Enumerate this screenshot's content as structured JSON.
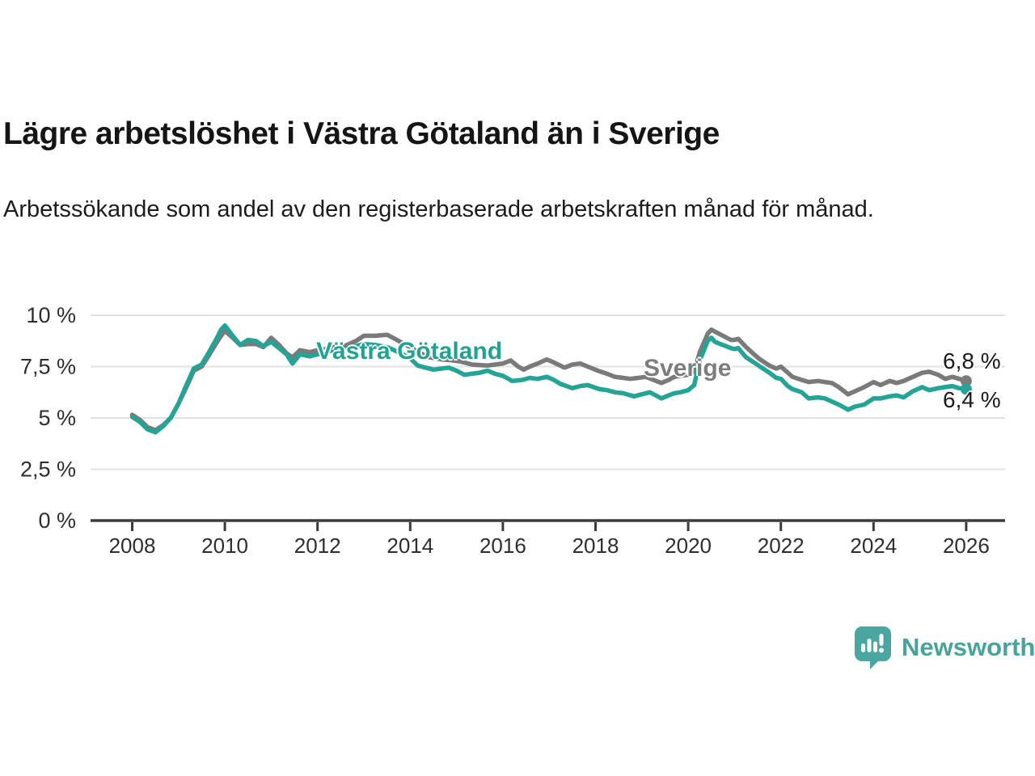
{
  "header": {
    "title": "Lägre arbetslöshet i Västra Götaland än i Sverige",
    "subtitle": "Arbetssökande som andel av den registerbaserade arbetskraften månad för månad."
  },
  "branding": {
    "logo_text": "Newsworthy",
    "logo_color": "#47a49d",
    "logo_icon": "speech-bubble-bar-chart"
  },
  "colors": {
    "vastra_gotaland": "#23a496",
    "sverige": "#7a7a7a",
    "grid": "#e2e2e2",
    "axis": "#3b3b3b",
    "tick_text": "#2e2e2e",
    "annotation_text": "#1a1a1a",
    "background": "#ffffff"
  },
  "chart_data": {
    "type": "line",
    "title": "Lägre arbetslöshet i Västra Götaland än i Sverige",
    "subtitle": "Arbetssökande som andel av den registerbaserade arbetskraften månad för månad.",
    "xlabel": "",
    "ylabel": "",
    "x_ticks": [
      2008,
      2010,
      2012,
      2014,
      2016,
      2018,
      2020,
      2022,
      2024,
      2026
    ],
    "y_ticks": [
      {
        "value": 10,
        "label": "10 %"
      },
      {
        "value": 7.5,
        "label": "7,5 %"
      },
      {
        "value": 5,
        "label": "5 %"
      },
      {
        "value": 2.5,
        "label": "2,5 %"
      },
      {
        "value": 0,
        "label": "0 %"
      }
    ],
    "xlim": [
      2007.1,
      2026.85
    ],
    "ylim": [
      0,
      10.5
    ],
    "grid": true,
    "legend_position": "inline-labels",
    "series": [
      {
        "name": "Sverige",
        "color": "#7a7a7a",
        "end_label": "6,8 %",
        "end_value": 6.8,
        "points": [
          [
            2008.0,
            5.15
          ],
          [
            2008.17,
            4.9
          ],
          [
            2008.33,
            4.55
          ],
          [
            2008.5,
            4.4
          ],
          [
            2008.67,
            4.65
          ],
          [
            2008.83,
            5.0
          ],
          [
            2009.0,
            5.7
          ],
          [
            2009.17,
            6.5
          ],
          [
            2009.33,
            7.3
          ],
          [
            2009.5,
            7.5
          ],
          [
            2009.67,
            8.1
          ],
          [
            2009.83,
            8.7
          ],
          [
            2009.92,
            9.0
          ],
          [
            2010.0,
            9.25
          ],
          [
            2010.17,
            8.9
          ],
          [
            2010.33,
            8.55
          ],
          [
            2010.5,
            8.6
          ],
          [
            2010.67,
            8.6
          ],
          [
            2010.83,
            8.45
          ],
          [
            2011.0,
            8.9
          ],
          [
            2011.17,
            8.55
          ],
          [
            2011.33,
            8.15
          ],
          [
            2011.46,
            7.95
          ],
          [
            2011.62,
            8.3
          ],
          [
            2011.83,
            8.2
          ],
          [
            2012.0,
            8.3
          ],
          [
            2012.17,
            8.35
          ],
          [
            2012.33,
            8.45
          ],
          [
            2012.58,
            8.5
          ],
          [
            2012.83,
            8.75
          ],
          [
            2013.0,
            9.0
          ],
          [
            2013.25,
            9.0
          ],
          [
            2013.5,
            9.05
          ],
          [
            2013.67,
            8.85
          ],
          [
            2013.83,
            8.65
          ],
          [
            2014.0,
            8.45
          ],
          [
            2014.17,
            8.2
          ],
          [
            2014.42,
            7.95
          ],
          [
            2014.67,
            7.85
          ],
          [
            2014.92,
            7.8
          ],
          [
            2015.08,
            7.75
          ],
          [
            2015.33,
            7.6
          ],
          [
            2015.67,
            7.55
          ],
          [
            2015.83,
            7.6
          ],
          [
            2016.0,
            7.65
          ],
          [
            2016.17,
            7.8
          ],
          [
            2016.33,
            7.5
          ],
          [
            2016.45,
            7.35
          ],
          [
            2016.58,
            7.5
          ],
          [
            2016.75,
            7.65
          ],
          [
            2016.95,
            7.85
          ],
          [
            2017.1,
            7.7
          ],
          [
            2017.33,
            7.45
          ],
          [
            2017.5,
            7.6
          ],
          [
            2017.67,
            7.65
          ],
          [
            2017.83,
            7.5
          ],
          [
            2018.05,
            7.3
          ],
          [
            2018.25,
            7.15
          ],
          [
            2018.42,
            7.0
          ],
          [
            2018.6,
            6.95
          ],
          [
            2018.75,
            6.9
          ],
          [
            2018.92,
            6.95
          ],
          [
            2019.08,
            7.0
          ],
          [
            2019.25,
            6.85
          ],
          [
            2019.42,
            6.7
          ],
          [
            2019.58,
            6.85
          ],
          [
            2019.7,
            7.0
          ],
          [
            2019.83,
            7.05
          ],
          [
            2020.0,
            7.1
          ],
          [
            2020.13,
            7.25
          ],
          [
            2020.25,
            8.2
          ],
          [
            2020.42,
            9.1
          ],
          [
            2020.5,
            9.3
          ],
          [
            2020.58,
            9.2
          ],
          [
            2020.75,
            9.0
          ],
          [
            2020.92,
            8.8
          ],
          [
            2021.0,
            8.8
          ],
          [
            2021.08,
            8.85
          ],
          [
            2021.25,
            8.45
          ],
          [
            2021.42,
            8.1
          ],
          [
            2021.55,
            7.85
          ],
          [
            2021.75,
            7.55
          ],
          [
            2021.9,
            7.4
          ],
          [
            2022.0,
            7.5
          ],
          [
            2022.15,
            7.2
          ],
          [
            2022.25,
            7.0
          ],
          [
            2022.45,
            6.85
          ],
          [
            2022.6,
            6.75
          ],
          [
            2022.8,
            6.8
          ],
          [
            2022.95,
            6.75
          ],
          [
            2023.1,
            6.7
          ],
          [
            2023.25,
            6.5
          ],
          [
            2023.45,
            6.15
          ],
          [
            2023.6,
            6.3
          ],
          [
            2023.8,
            6.5
          ],
          [
            2024.0,
            6.75
          ],
          [
            2024.15,
            6.6
          ],
          [
            2024.35,
            6.8
          ],
          [
            2024.5,
            6.7
          ],
          [
            2024.65,
            6.8
          ],
          [
            2024.85,
            7.0
          ],
          [
            2025.05,
            7.2
          ],
          [
            2025.2,
            7.25
          ],
          [
            2025.4,
            7.1
          ],
          [
            2025.55,
            6.9
          ],
          [
            2025.7,
            7.0
          ],
          [
            2025.85,
            6.9
          ],
          [
            2026.0,
            6.8
          ]
        ]
      },
      {
        "name": "Västra Götaland",
        "color": "#23a496",
        "end_label": "6,4 %",
        "end_value": 6.4,
        "points": [
          [
            2008.0,
            5.05
          ],
          [
            2008.17,
            4.8
          ],
          [
            2008.33,
            4.45
          ],
          [
            2008.5,
            4.3
          ],
          [
            2008.67,
            4.6
          ],
          [
            2008.83,
            5.0
          ],
          [
            2009.0,
            5.7
          ],
          [
            2009.17,
            6.6
          ],
          [
            2009.33,
            7.4
          ],
          [
            2009.5,
            7.6
          ],
          [
            2009.67,
            8.25
          ],
          [
            2009.83,
            8.9
          ],
          [
            2009.92,
            9.3
          ],
          [
            2010.0,
            9.5
          ],
          [
            2010.17,
            9.0
          ],
          [
            2010.33,
            8.55
          ],
          [
            2010.5,
            8.8
          ],
          [
            2010.67,
            8.75
          ],
          [
            2010.83,
            8.5
          ],
          [
            2011.0,
            8.7
          ],
          [
            2011.17,
            8.4
          ],
          [
            2011.33,
            8.1
          ],
          [
            2011.46,
            7.65
          ],
          [
            2011.62,
            8.1
          ],
          [
            2011.83,
            8.0
          ],
          [
            2012.0,
            8.1
          ],
          [
            2012.17,
            8.2
          ],
          [
            2012.33,
            8.3
          ],
          [
            2012.58,
            8.35
          ],
          [
            2012.83,
            8.5
          ],
          [
            2013.0,
            8.6
          ],
          [
            2013.25,
            8.55
          ],
          [
            2013.5,
            8.45
          ],
          [
            2013.75,
            8.2
          ],
          [
            2014.0,
            7.9
          ],
          [
            2014.16,
            7.55
          ],
          [
            2014.33,
            7.45
          ],
          [
            2014.5,
            7.35
          ],
          [
            2014.67,
            7.4
          ],
          [
            2014.83,
            7.45
          ],
          [
            2015.0,
            7.3
          ],
          [
            2015.17,
            7.1
          ],
          [
            2015.33,
            7.15
          ],
          [
            2015.5,
            7.2
          ],
          [
            2015.67,
            7.3
          ],
          [
            2015.83,
            7.15
          ],
          [
            2016.0,
            7.05
          ],
          [
            2016.2,
            6.8
          ],
          [
            2016.42,
            6.85
          ],
          [
            2016.58,
            6.95
          ],
          [
            2016.75,
            6.9
          ],
          [
            2016.95,
            7.0
          ],
          [
            2017.1,
            6.85
          ],
          [
            2017.25,
            6.65
          ],
          [
            2017.5,
            6.45
          ],
          [
            2017.67,
            6.55
          ],
          [
            2017.83,
            6.6
          ],
          [
            2018.08,
            6.4
          ],
          [
            2018.25,
            6.35
          ],
          [
            2018.42,
            6.25
          ],
          [
            2018.6,
            6.2
          ],
          [
            2018.83,
            6.05
          ],
          [
            2019.0,
            6.15
          ],
          [
            2019.17,
            6.25
          ],
          [
            2019.3,
            6.1
          ],
          [
            2019.42,
            5.95
          ],
          [
            2019.58,
            6.1
          ],
          [
            2019.7,
            6.2
          ],
          [
            2019.83,
            6.25
          ],
          [
            2020.0,
            6.35
          ],
          [
            2020.13,
            6.6
          ],
          [
            2020.25,
            7.8
          ],
          [
            2020.42,
            8.75
          ],
          [
            2020.5,
            8.9
          ],
          [
            2020.58,
            8.7
          ],
          [
            2020.75,
            8.55
          ],
          [
            2020.92,
            8.4
          ],
          [
            2021.0,
            8.35
          ],
          [
            2021.08,
            8.4
          ],
          [
            2021.25,
            7.95
          ],
          [
            2021.42,
            7.7
          ],
          [
            2021.55,
            7.5
          ],
          [
            2021.75,
            7.2
          ],
          [
            2021.9,
            6.95
          ],
          [
            2022.0,
            6.9
          ],
          [
            2022.15,
            6.55
          ],
          [
            2022.25,
            6.4
          ],
          [
            2022.45,
            6.25
          ],
          [
            2022.6,
            5.95
          ],
          [
            2022.8,
            6.0
          ],
          [
            2022.95,
            5.95
          ],
          [
            2023.1,
            5.8
          ],
          [
            2023.25,
            5.65
          ],
          [
            2023.45,
            5.4
          ],
          [
            2023.6,
            5.55
          ],
          [
            2023.8,
            5.65
          ],
          [
            2024.0,
            5.95
          ],
          [
            2024.15,
            5.95
          ],
          [
            2024.35,
            6.05
          ],
          [
            2024.5,
            6.1
          ],
          [
            2024.65,
            6.0
          ],
          [
            2024.85,
            6.3
          ],
          [
            2025.05,
            6.5
          ],
          [
            2025.2,
            6.35
          ],
          [
            2025.4,
            6.45
          ],
          [
            2025.55,
            6.5
          ],
          [
            2025.7,
            6.55
          ],
          [
            2025.85,
            6.45
          ],
          [
            2026.0,
            6.4
          ]
        ]
      }
    ],
    "annotations": [
      {
        "text": "Västra Götaland",
        "color": "#21a394",
        "near_year": 2014,
        "near_value": 8.3
      },
      {
        "text": "Sverige",
        "color": "#7d7d7d",
        "near_year": 2020,
        "near_value": 7.5
      },
      {
        "text": "6,8 %",
        "series": "Sverige",
        "position": "end"
      },
      {
        "text": "6,4 %",
        "series": "Västra Götaland",
        "position": "end"
      }
    ]
  }
}
